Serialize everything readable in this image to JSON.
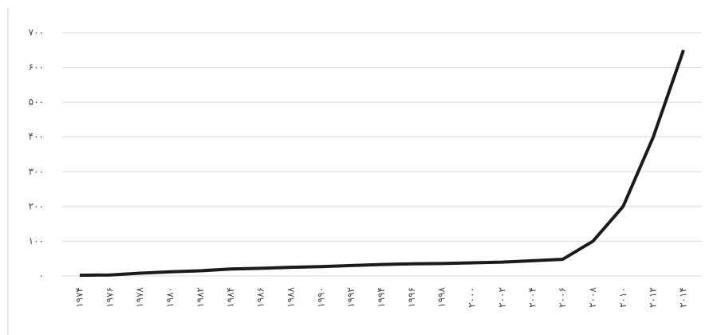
{
  "chart_data": {
    "type": "line",
    "categories": [
      "۱۹۷۴",
      "۱۹۷۶",
      "۱۹۷۸",
      "۱۹۸۰",
      "۱۹۸۲",
      "۱۹۸۴",
      "۱۹۸۶",
      "۱۹۸۸",
      "۱۹۹۰",
      "۱۹۹۲",
      "۱۹۹۴",
      "۱۹۹۶",
      "۱۹۹۸",
      "۲۰۰۰",
      "۲۰۰۲",
      "۲۰۰۴",
      "۲۰۰۶",
      "۲۰۰۸",
      "۲۰۱۰",
      "۲۰۱۲",
      "۲۰۱۴"
    ],
    "series": [
      {
        "color": "#1a1a1a",
        "values": [
          2,
          3,
          8,
          12,
          15,
          20,
          22,
          25,
          27,
          30,
          33,
          35,
          36,
          38,
          40,
          44,
          48,
          100,
          200,
          400,
          650
        ]
      }
    ],
    "ylim": [
      0,
      700
    ],
    "yticks": [
      {
        "value": 0,
        "label": "۰"
      },
      {
        "value": 100,
        "label": "۱۰۰"
      },
      {
        "value": 200,
        "label": "۲۰۰"
      },
      {
        "value": 300,
        "label": "۳۰۰"
      },
      {
        "value": 400,
        "label": "۴۰۰"
      },
      {
        "value": 500,
        "label": "۵۰۰"
      },
      {
        "value": 600,
        "label": "۶۰۰"
      },
      {
        "value": 700,
        "label": "۷۰۰"
      }
    ],
    "grid": true
  }
}
